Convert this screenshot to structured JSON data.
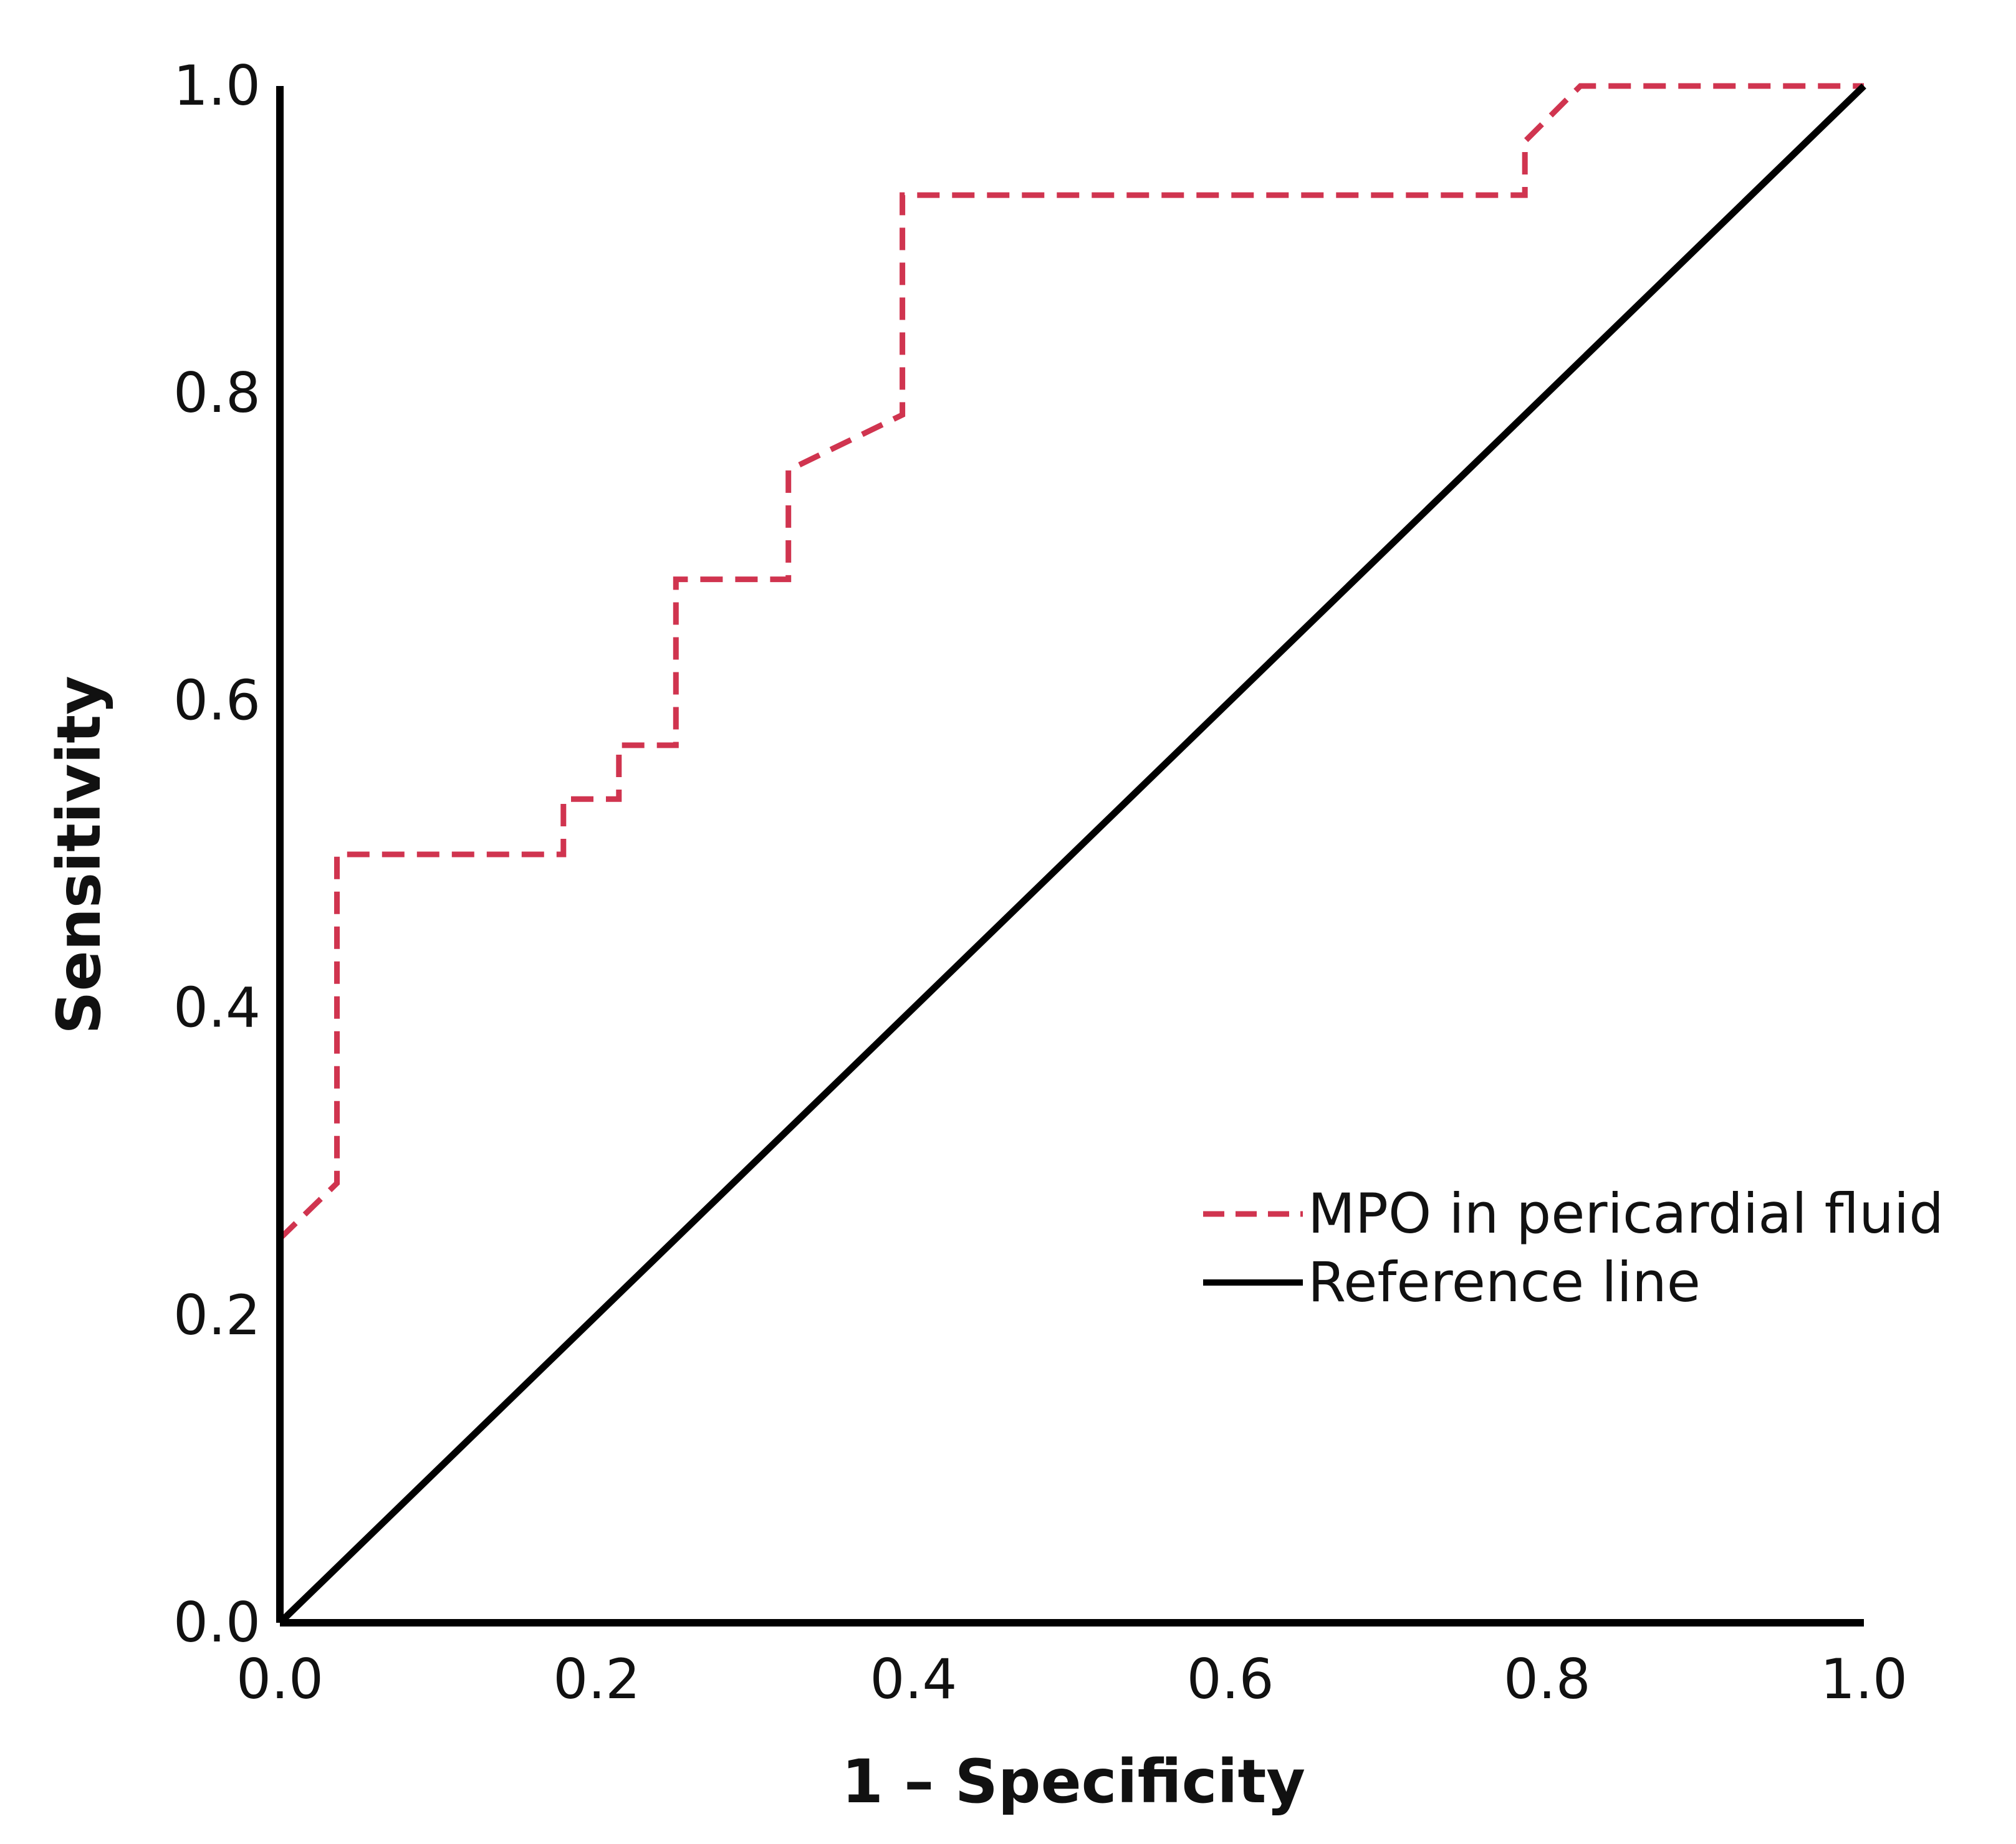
{
  "chart_data": {
    "type": "line",
    "title": "",
    "xlabel": "1 – Specificity",
    "ylabel": "Sensitivity",
    "xlim": [
      0,
      1
    ],
    "ylim": [
      0,
      1
    ],
    "x_ticks": [
      "0.0",
      "0.2",
      "0.4",
      "0.6",
      "0.8",
      "1.0"
    ],
    "y_ticks": [
      "0.0",
      "0.2",
      "0.4",
      "0.6",
      "0.8",
      "1.0"
    ],
    "x_tick_values": [
      0,
      0.2,
      0.4,
      0.6,
      0.8,
      1.0
    ],
    "y_tick_values": [
      0,
      0.2,
      0.4,
      0.6,
      0.8,
      1.0
    ],
    "grid": false,
    "legend_position": "right",
    "series": [
      {
        "name": "MPO in pericardial fluid",
        "style": "dashed",
        "color": "#d0344f",
        "points": [
          [
            0.0,
            0.0
          ],
          [
            0.0,
            0.25
          ],
          [
            0.036,
            0.286
          ],
          [
            0.036,
            0.5
          ],
          [
            0.179,
            0.5
          ],
          [
            0.179,
            0.536
          ],
          [
            0.214,
            0.536
          ],
          [
            0.214,
            0.571
          ],
          [
            0.25,
            0.571
          ],
          [
            0.25,
            0.679
          ],
          [
            0.321,
            0.679
          ],
          [
            0.321,
            0.75
          ],
          [
            0.393,
            0.786
          ],
          [
            0.393,
            0.929
          ],
          [
            0.786,
            0.929
          ],
          [
            0.786,
            0.964
          ],
          [
            0.821,
            1.0
          ],
          [
            1.0,
            1.0
          ]
        ]
      },
      {
        "name": "Reference line",
        "style": "solid",
        "color": "#000000",
        "points": [
          [
            0.0,
            0.0
          ],
          [
            1.0,
            1.0
          ]
        ]
      }
    ]
  }
}
